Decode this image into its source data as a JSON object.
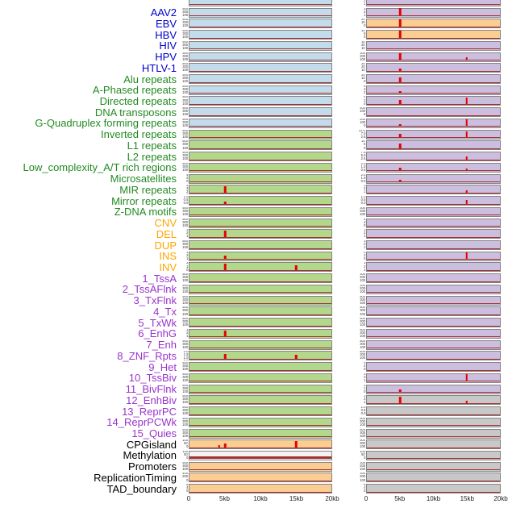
{
  "chart_data": {
    "type": "area",
    "description": "Small-multiple genomic signal profiles; two panel columns per feature row, red spikes mark enrichment peaks",
    "x_axis": {
      "ticks": [
        "0",
        "5kb",
        "10kb",
        "15kb",
        "20kb"
      ],
      "range_kb": [
        0,
        20
      ]
    },
    "label_colors": {
      "virus": "#0000cc",
      "repeat": "#228b22",
      "sv": "#ffa500",
      "chromhmm": "#9933cc",
      "other": "#000000"
    },
    "panel_colors": {
      "blue": "#c2dcec",
      "green": "#b4d88b",
      "orange": "#fccd92",
      "purple": "#ccbedf",
      "gray": "#c8c8c8",
      "white": "#f2f2f2"
    },
    "spike_color": "#e60000",
    "baseline_color": "#a63030",
    "rows": [
      {
        "label": "",
        "group": "other",
        "c1": "blue",
        "t1": [],
        "s1": [],
        "c2": "purple",
        "t2": [
          "3",
          "2",
          "1"
        ],
        "s2": []
      },
      {
        "label": "AAV2",
        "group": "virus",
        "c1": "blue",
        "t1": [
          "500",
          "300",
          "100"
        ],
        "s1": [],
        "c2": "purple",
        "t2": [
          "3",
          "2",
          "1"
        ],
        "s2": [
          [
            0.25,
            0.92
          ]
        ]
      },
      {
        "label": "EBV",
        "group": "virus",
        "c1": "blue",
        "t1": [
          "500",
          "300",
          "100"
        ],
        "s1": [],
        "c2": "orange",
        "t2": [
          "20",
          "10",
          "0"
        ],
        "s2": [
          [
            0.25,
            0.9
          ]
        ]
      },
      {
        "label": "HBV",
        "group": "virus",
        "c1": "blue",
        "t1": [
          "500",
          "300",
          "100"
        ],
        "s1": [],
        "c2": "orange",
        "t2": [
          "10",
          "5",
          "0"
        ],
        "s2": [
          [
            0.25,
            0.9
          ]
        ]
      },
      {
        "label": "HIV",
        "group": "virus",
        "c1": "blue",
        "t1": [
          "500",
          "300",
          "100"
        ],
        "s1": [],
        "c2": "purple",
        "t2": [
          "30",
          "20",
          "10"
        ],
        "s2": []
      },
      {
        "label": "HPV",
        "group": "virus",
        "c1": "blue",
        "t1": [
          "500",
          "300",
          "100"
        ],
        "s1": [],
        "c2": "purple",
        "t2": [
          "300",
          "200",
          "100"
        ],
        "s2": [
          [
            0.25,
            0.88
          ],
          [
            0.75,
            0.38
          ]
        ]
      },
      {
        "label": "HTLV-1",
        "group": "virus",
        "c1": "blue",
        "t1": [
          "500",
          "300",
          "100"
        ],
        "s1": [],
        "c2": "purple",
        "t2": [
          "30",
          "20",
          "10"
        ],
        "s2": [
          [
            0.25,
            0.3
          ]
        ]
      },
      {
        "label": "Alu repeats",
        "group": "repeat",
        "c1": "blue",
        "t1": [
          "500",
          "300",
          "100"
        ],
        "s1": [],
        "c2": "purple",
        "t2": [
          "20",
          "10",
          "0"
        ],
        "s2": [
          [
            0.25,
            0.6
          ]
        ]
      },
      {
        "label": "A-Phased repeats",
        "group": "repeat",
        "c1": "blue",
        "t1": [
          "500",
          "300",
          "100"
        ],
        "s1": [],
        "c2": "purple",
        "t2": [
          "6",
          "4",
          "2"
        ],
        "s2": [
          [
            0.25,
            0.25
          ]
        ]
      },
      {
        "label": "Directed repeats",
        "group": "repeat",
        "c1": "blue",
        "t1": [
          "500",
          "300",
          "100"
        ],
        "s1": [],
        "c2": "purple",
        "t2": [
          "4",
          "2",
          "0"
        ],
        "s2": [
          [
            0.25,
            0.55
          ],
          [
            0.75,
            0.8
          ]
        ]
      },
      {
        "label": "DNA transposons",
        "group": "repeat",
        "c1": "blue",
        "t1": [
          "500",
          "300",
          "100"
        ],
        "s1": [],
        "c2": "purple",
        "t2": [
          "200",
          "100",
          "0"
        ],
        "s2": []
      },
      {
        "label": "G-Quadruplex forming repeats",
        "group": "repeat",
        "c1": "blue",
        "t1": [
          "500",
          "300",
          "100"
        ],
        "s1": [],
        "c2": "purple",
        "t2": [
          "200",
          "100",
          "0"
        ],
        "s2": [
          [
            0.25,
            0.3
          ],
          [
            0.75,
            0.88
          ]
        ]
      },
      {
        "label": "Inverted repeats",
        "group": "repeat",
        "c1": "green",
        "t1": [
          "500",
          "300",
          "100"
        ],
        "s1": [],
        "c2": "purple",
        "t2": [
          "12.5",
          "7.5",
          "2.5"
        ],
        "s2": [
          [
            0.25,
            0.45
          ],
          [
            0.75,
            0.75
          ]
        ]
      },
      {
        "label": "L1 repeats",
        "group": "repeat",
        "c1": "green",
        "t1": [
          "500",
          "300",
          "100"
        ],
        "s1": [],
        "c2": "purple",
        "t2": [
          "10",
          "5",
          "0"
        ],
        "s2": [
          [
            0.25,
            0.65
          ]
        ]
      },
      {
        "label": "L2 repeats",
        "group": "repeat",
        "c1": "green",
        "t1": [
          "500",
          "300",
          "100"
        ],
        "s1": [],
        "c2": "purple",
        "t2": [
          "7.5",
          "5.0",
          "2.5"
        ],
        "s2": [
          [
            0.75,
            0.4
          ]
        ]
      },
      {
        "label": "Low_complexity_A/T rich regions",
        "group": "repeat",
        "c1": "green",
        "t1": [
          "500",
          "300",
          "100"
        ],
        "s1": [],
        "c2": "purple",
        "t2": [
          "2.5",
          "1.5",
          "0.5"
        ],
        "s2": [
          [
            0.25,
            0.35
          ],
          [
            0.75,
            0.3
          ]
        ]
      },
      {
        "label": "Microsatellites",
        "group": "repeat",
        "c1": "green",
        "t1": [
          "4",
          "2",
          "0"
        ],
        "s1": [],
        "c2": "purple",
        "t2": [
          "2.0",
          "1.0",
          "0.0"
        ],
        "s2": [
          [
            0.25,
            0.3
          ]
        ]
      },
      {
        "label": "MIR repeats",
        "group": "repeat",
        "c1": "green",
        "t1": [
          "4",
          "3",
          "2",
          "1"
        ],
        "s1": [
          [
            0.25,
            0.85
          ]
        ],
        "c2": "purple",
        "t2": [
          "3",
          "2",
          "1"
        ],
        "s2": [
          [
            0.75,
            0.35
          ]
        ]
      },
      {
        "label": "Mirror repeats",
        "group": "repeat",
        "c1": "green",
        "t1": [
          "1.0",
          "0.5",
          "0.0"
        ],
        "s1": [
          [
            0.25,
            0.35
          ]
        ],
        "c2": "purple",
        "t2": [
          "1.0",
          "0.5",
          "0.0"
        ],
        "s2": [
          [
            0.75,
            0.5
          ]
        ]
      },
      {
        "label": "Z-DNA motifs",
        "group": "repeat",
        "c1": "green",
        "t1": [
          "500",
          "300",
          "100"
        ],
        "s1": [],
        "c2": "purple",
        "t2": [
          "300",
          "200",
          "100"
        ],
        "s2": []
      },
      {
        "label": "CNV",
        "group": "sv",
        "c1": "green",
        "t1": [
          "500",
          "300",
          "100"
        ],
        "s1": [],
        "c2": "purple",
        "t2": [
          "8",
          "4",
          "0"
        ],
        "s2": []
      },
      {
        "label": "DEL",
        "group": "sv",
        "c1": "green",
        "t1": [
          "3",
          "2",
          "1"
        ],
        "s1": [
          [
            0.25,
            0.8
          ]
        ],
        "c2": "purple",
        "t2": [
          "3",
          "2",
          "1"
        ],
        "s2": []
      },
      {
        "label": "DUP",
        "group": "sv",
        "c1": "green",
        "t1": [
          "500",
          "300",
          "100"
        ],
        "s1": [],
        "c2": "purple",
        "t2": [
          "3",
          "2",
          "1"
        ],
        "s2": []
      },
      {
        "label": "INS",
        "group": "sv",
        "c1": "green",
        "t1": [
          "3",
          "2",
          "1"
        ],
        "s1": [
          [
            0.25,
            0.45
          ]
        ],
        "c2": "purple",
        "t2": [
          "4",
          "2",
          "0"
        ],
        "s2": [
          [
            0.75,
            0.9
          ]
        ]
      },
      {
        "label": "INV",
        "group": "sv",
        "c1": "green",
        "t1": [
          "2",
          "1",
          "0"
        ],
        "s1": [
          [
            0.25,
            0.8
          ],
          [
            0.75,
            0.62
          ]
        ],
        "c2": "purple",
        "t2": [
          "3",
          "2",
          "1"
        ],
        "s2": []
      },
      {
        "label": "1_TssA",
        "group": "chromhmm",
        "c1": "green",
        "t1": [
          "500",
          "300",
          "100"
        ],
        "s1": [],
        "c2": "purple",
        "t2": [
          "300",
          "200",
          "100"
        ],
        "s2": []
      },
      {
        "label": "2_TssAFlnk",
        "group": "chromhmm",
        "c1": "green",
        "t1": [
          "500",
          "300",
          "100"
        ],
        "s1": [],
        "c2": "purple",
        "t2": [
          "300",
          "200",
          "100"
        ],
        "s2": []
      },
      {
        "label": "3_TxFlnk",
        "group": "chromhmm",
        "c1": "green",
        "t1": [
          "500",
          "300",
          "100"
        ],
        "s1": [],
        "c2": "purple",
        "t2": [
          "500",
          "300",
          "100"
        ],
        "s2": []
      },
      {
        "label": "4_Tx",
        "group": "chromhmm",
        "c1": "green",
        "t1": [
          "500",
          "300",
          "100"
        ],
        "s1": [],
        "c2": "purple",
        "t2": [
          "500",
          "300",
          "100"
        ],
        "s2": []
      },
      {
        "label": "5_TxWk",
        "group": "chromhmm",
        "c1": "green",
        "t1": [
          "500",
          "300",
          "100"
        ],
        "s1": [],
        "c2": "purple",
        "t2": [
          "500",
          "300",
          "100"
        ],
        "s2": []
      },
      {
        "label": "6_EnhG",
        "group": "chromhmm",
        "c1": "green",
        "t1": [
          "3",
          "2",
          "1"
        ],
        "s1": [
          [
            0.25,
            0.8
          ]
        ],
        "c2": "purple",
        "t2": [
          "500",
          "300",
          "100"
        ],
        "s2": []
      },
      {
        "label": "7_Enh",
        "group": "chromhmm",
        "c1": "green",
        "t1": [
          "500",
          "300",
          "100"
        ],
        "s1": [],
        "c2": "purple",
        "t2": [
          "500",
          "300",
          "100"
        ],
        "s2": []
      },
      {
        "label": "8_ZNF_Rpts",
        "group": "chromhmm",
        "c1": "green",
        "t1": [
          "2.0",
          "1.5",
          "1.0",
          "0.5"
        ],
        "s1": [
          [
            0.25,
            0.6
          ],
          [
            0.75,
            0.55
          ]
        ],
        "c2": "purple",
        "t2": [
          "500",
          "300",
          "100"
        ],
        "s2": []
      },
      {
        "label": "9_Het",
        "group": "chromhmm",
        "c1": "green",
        "t1": [
          "500",
          "300",
          "100"
        ],
        "s1": [],
        "c2": "purple",
        "t2": [
          "4",
          "2",
          "0"
        ],
        "s2": []
      },
      {
        "label": "10_TssBiv",
        "group": "chromhmm",
        "c1": "green",
        "t1": [
          "500",
          "300",
          "100"
        ],
        "s1": [],
        "c2": "purple",
        "t2": [
          "3",
          "2",
          "1"
        ],
        "s2": [
          [
            0.75,
            0.9
          ]
        ]
      },
      {
        "label": "11_BivFlnk",
        "group": "chromhmm",
        "c1": "green",
        "t1": [
          "500",
          "300",
          "100"
        ],
        "s1": [],
        "c2": "purple",
        "t2": [
          "2",
          "1",
          "0"
        ],
        "s2": [
          [
            0.25,
            0.35
          ]
        ]
      },
      {
        "label": "12_EnhBiv",
        "group": "chromhmm",
        "c1": "green",
        "t1": [
          "500",
          "300",
          "100"
        ],
        "s1": [],
        "c2": "gray",
        "t2": [
          "3",
          "2",
          "1"
        ],
        "s2": [
          [
            0.25,
            0.8
          ],
          [
            0.75,
            0.3
          ]
        ]
      },
      {
        "label": "13_ReprPC",
        "group": "chromhmm",
        "c1": "green",
        "t1": [
          "500",
          "300",
          "100"
        ],
        "s1": [],
        "c2": "gray",
        "t2": [
          "1.0",
          "0.5",
          "0.0"
        ],
        "s2": []
      },
      {
        "label": "14_ReprPCWk",
        "group": "chromhmm",
        "c1": "green",
        "t1": [
          "500",
          "300",
          "100"
        ],
        "s1": [],
        "c2": "gray",
        "t2": [
          "500",
          "300",
          "100"
        ],
        "s2": []
      },
      {
        "label": "15_Quies",
        "group": "chromhmm",
        "c1": "green",
        "t1": [
          "500",
          "300",
          "100"
        ],
        "s1": [],
        "c2": "gray",
        "t2": [
          "500",
          "300",
          "100"
        ],
        "s2": []
      },
      {
        "label": "CPGisland",
        "group": "other",
        "c1": "orange",
        "t1": [
          "100",
          "50",
          "0"
        ],
        "s1": [
          [
            0.21,
            0.3
          ],
          [
            0.25,
            0.5
          ],
          [
            0.75,
            0.85
          ]
        ],
        "c2": "gray",
        "t2": [
          "500",
          "300",
          "100"
        ],
        "s2": []
      },
      {
        "label": "Methylation",
        "group": "other",
        "c1": "white",
        "t1": [
          "100",
          "50",
          "0"
        ],
        "s1": [],
        "base1": 3,
        "c2": "gray",
        "t2": [
          "100",
          "50",
          "0"
        ],
        "s2": []
      },
      {
        "label": "Promoters",
        "group": "other",
        "c1": "orange",
        "t1": [
          "500",
          "300",
          "100"
        ],
        "s1": [],
        "c2": "gray",
        "t2": [
          "300",
          "200",
          "100"
        ],
        "s2": []
      },
      {
        "label": "ReplicationTiming",
        "group": "other",
        "c1": "orange",
        "t1": [
          "400",
          "200",
          "0"
        ],
        "s1": [],
        "c2": "gray",
        "t2": [
          "300",
          "200",
          "100"
        ],
        "s2": []
      },
      {
        "label": "TAD_boundary",
        "group": "other",
        "c1": "orange",
        "t1": [
          "8",
          "4",
          "0"
        ],
        "s1": [],
        "c2": "gray",
        "t2": [
          "8",
          "4",
          "0"
        ],
        "s2": []
      }
    ]
  }
}
